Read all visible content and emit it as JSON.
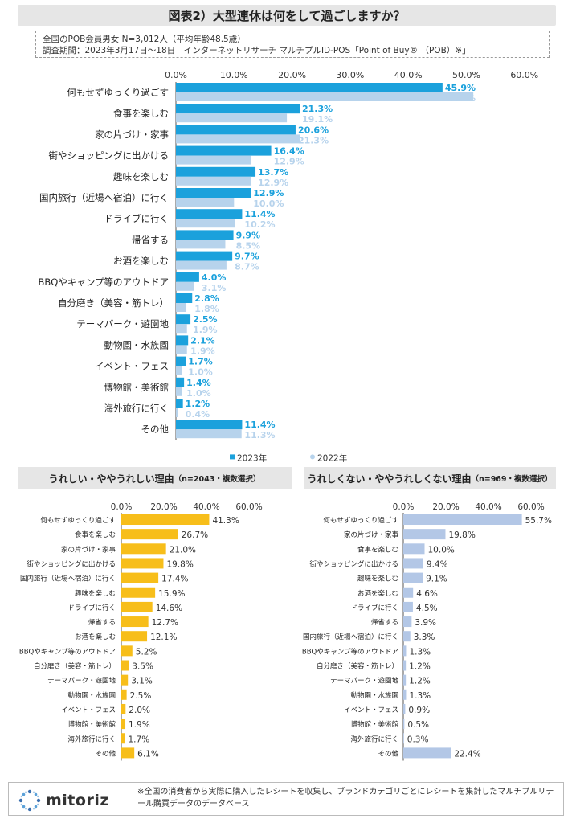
{
  "header": {
    "title": "図表2）大型連休は何をして過ごしますか？",
    "meta_line1": "全国のPOB会員男女 N=3,012人（平均年齢48.5歳）",
    "meta_line2": "調査期間：2023年3月17日～18日　インターネットリサーチ マルチプルID-POS「Point of Buy® （POB）※」"
  },
  "colors": {
    "series_2023": "#1ba1dc",
    "series_2022": "#b7d3ec",
    "happy": "#f7be1a",
    "unhappy": "#b3c7e6"
  },
  "chart_data": [
    {
      "type": "bar",
      "orientation": "horizontal",
      "ticks": [
        "0.0%",
        "10.0%",
        "20.0%",
        "30.0%",
        "40.0%",
        "50.0%",
        "60.0%"
      ],
      "xlim": [
        0,
        60
      ],
      "categories": [
        "何もせずゆっくり過ごす",
        "食事を楽しむ",
        "家の片づけ・家事",
        "街やショッピングに出かける",
        "趣味を楽しむ",
        "国内旅行（近場へ宿泊）に行く",
        "ドライブに行く",
        "帰省する",
        "お酒を楽しむ",
        "BBQやキャンプ等のアウトドア",
        "自分磨き（美容・筋トレ）",
        "テーマパーク・遊園地",
        "動物園・水族園",
        "イベント・フェス",
        "博物館・美術館",
        "海外旅行に行く",
        "その他"
      ],
      "series": [
        {
          "name": "2023年",
          "values": [
            45.9,
            21.3,
            20.6,
            16.4,
            13.7,
            12.9,
            11.4,
            9.9,
            9.7,
            4.0,
            2.8,
            2.5,
            2.1,
            1.7,
            1.4,
            1.2,
            11.4
          ]
        },
        {
          "name": "2022年",
          "values": [
            51.2,
            19.1,
            21.3,
            12.9,
            12.9,
            10.0,
            10.2,
            8.5,
            8.7,
            3.1,
            1.8,
            1.9,
            1.9,
            1.0,
            1.0,
            0.4,
            11.3
          ]
        }
      ],
      "legend": "bottom"
    },
    {
      "type": "bar",
      "orientation": "horizontal",
      "title": "うれしい・ややうれしい理由",
      "title_note": "（n=2043・複数選択）",
      "ticks": [
        "0.0%",
        "20.0%",
        "40.0%",
        "60.0%"
      ],
      "xlim": [
        0,
        60
      ],
      "categories": [
        "何もせずゆっくり過ごす",
        "食事を楽しむ",
        "家の片づけ・家事",
        "街やショッピングに出かける",
        "国内旅行（近場へ宿泊）に行く",
        "趣味を楽しむ",
        "ドライブに行く",
        "帰省する",
        "お酒を楽しむ",
        "BBQやキャンプ等のアウトドア",
        "自分磨き（美容・筋トレ）",
        "テーマパーク・遊園地",
        "動物園・水族園",
        "イベント・フェス",
        "博物館・美術館",
        "海外旅行に行く",
        "その他"
      ],
      "values": [
        41.3,
        26.7,
        21.0,
        19.8,
        17.4,
        15.9,
        14.6,
        12.7,
        12.1,
        5.2,
        3.5,
        3.1,
        2.5,
        2.0,
        1.9,
        1.7,
        6.1
      ]
    },
    {
      "type": "bar",
      "orientation": "horizontal",
      "title": "うれしくない・ややうれしくない理由",
      "title_note": "（n=969・複数選択）",
      "ticks": [
        "0.0%",
        "20.0%",
        "40.0%",
        "60.0%"
      ],
      "xlim": [
        0,
        60
      ],
      "categories": [
        "何もせずゆっくり過ごす",
        "家の片づけ・家事",
        "食事を楽しむ",
        "街やショッピングに出かける",
        "趣味を楽しむ",
        "お酒を楽しむ",
        "ドライブに行く",
        "帰省する",
        "国内旅行（近場へ宿泊）に行く",
        "BBQやキャンプ等のアウトドア",
        "自分磨き（美容・筋トレ）",
        "テーマパーク・遊園地",
        "動物園・水族園",
        "イベント・フェス",
        "博物館・美術館",
        "海外旅行に行く",
        "その他"
      ],
      "values": [
        55.7,
        19.8,
        10.0,
        9.4,
        9.1,
        4.6,
        4.5,
        3.9,
        3.3,
        1.3,
        1.2,
        1.2,
        1.3,
        0.9,
        0.5,
        0.3,
        22.4
      ]
    }
  ],
  "footer": {
    "logo": "mitoriz",
    "logo_icon": "sparkle-dots-icon",
    "note": "※全国の消費者から実際に購入したレシートを収集し、ブランドカテゴリごとにレシートを集計したマルチプルリテール購買データのデータベース"
  }
}
